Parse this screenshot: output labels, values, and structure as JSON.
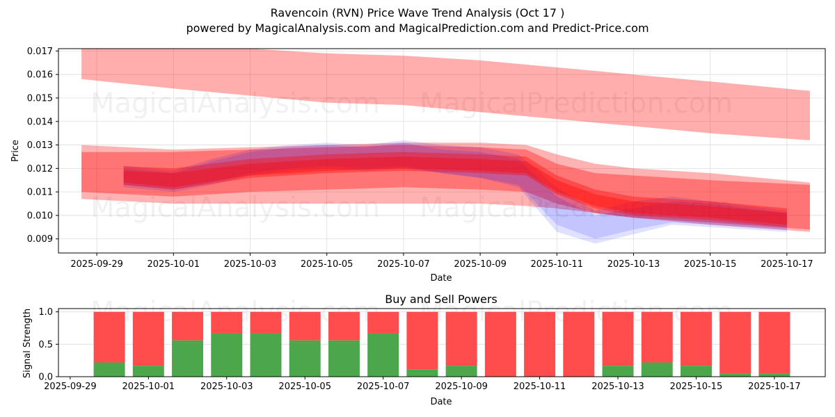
{
  "header": {
    "title": "Ravencoin (RVN) Price Wave Trend Analysis (Oct 17 )",
    "subtitle": "powered by MagicalAnalysis.com and MagicalPrediction.com and Predict-Price.com"
  },
  "watermarks": [
    "MagicalAnalysis.com",
    "MagicalPrediction.com"
  ],
  "colors": {
    "band_red": "#ff0000",
    "band_blue": "#0000ff",
    "buy": "#4ca64c",
    "sell": "#ff4c4c",
    "grid": "#dddddd"
  },
  "chart_data": [
    {
      "type": "area",
      "title": "",
      "xlabel": "Date",
      "ylabel": "Price",
      "ylim": [
        0.0084,
        0.0171
      ],
      "xlim": [
        "2025-09-28",
        "2025-10-18"
      ],
      "grid": true,
      "x_ticks": [
        "2025-09-29",
        "2025-10-01",
        "2025-10-03",
        "2025-10-05",
        "2025-10-07",
        "2025-10-09",
        "2025-10-11",
        "2025-10-13",
        "2025-10-15",
        "2025-10-17"
      ],
      "y_ticks": [
        "0.009",
        "0.010",
        "0.011",
        "0.012",
        "0.013",
        "0.014",
        "0.015",
        "0.016",
        "0.017"
      ],
      "series": [
        {
          "name": "upper-band",
          "color": "red",
          "alpha": 0.32,
          "x": [
            "2025-09-28.6",
            "2025-10-01",
            "2025-10-03",
            "2025-10-05",
            "2025-10-07",
            "2025-10-09",
            "2025-10-11",
            "2025-10-13",
            "2025-10-15",
            "2025-10-17.6"
          ],
          "upper": [
            0.0172,
            0.0172,
            0.0171,
            0.0169,
            0.0168,
            0.0166,
            0.0163,
            0.016,
            0.0157,
            0.0153
          ],
          "lower": [
            0.0158,
            0.0154,
            0.0151,
            0.0148,
            0.0147,
            0.0144,
            0.0141,
            0.0138,
            0.0135,
            0.0132
          ]
        },
        {
          "name": "outer-band",
          "color": "red",
          "alpha": 0.3,
          "x": [
            "2025-09-28.6",
            "2025-10-01",
            "2025-10-03",
            "2025-10-05",
            "2025-10-07",
            "2025-10-09",
            "2025-10-10.2",
            "2025-10-11",
            "2025-10-12",
            "2025-10-13",
            "2025-10-15",
            "2025-10-17.6"
          ],
          "upper": [
            0.013,
            0.0128,
            0.0129,
            0.013,
            0.0131,
            0.0131,
            0.013,
            0.0126,
            0.0122,
            0.012,
            0.0118,
            0.0114
          ],
          "lower": [
            0.0107,
            0.0105,
            0.0105,
            0.0105,
            0.0105,
            0.0105,
            0.0104,
            0.0103,
            0.0101,
            0.0099,
            0.0096,
            0.0093
          ]
        },
        {
          "name": "mid-band",
          "color": "red",
          "alpha": 0.35,
          "x": [
            "2025-09-28.6",
            "2025-10-01",
            "2025-10-03",
            "2025-10-05",
            "2025-10-07",
            "2025-10-09",
            "2025-10-10.2",
            "2025-10-11",
            "2025-10-12",
            "2025-10-13",
            "2025-10-15",
            "2025-10-17.6"
          ],
          "upper": [
            0.0127,
            0.0127,
            0.0128,
            0.0129,
            0.013,
            0.0129,
            0.0128,
            0.0122,
            0.0118,
            0.0117,
            0.0115,
            0.0113
          ],
          "lower": [
            0.011,
            0.0108,
            0.011,
            0.0111,
            0.0112,
            0.0111,
            0.011,
            0.0105,
            0.0101,
            0.0099,
            0.0097,
            0.0094
          ]
        },
        {
          "name": "blue-wave-1",
          "color": "blue",
          "alpha": 0.12,
          "x": [
            "2025-09-29.7",
            "2025-10-01",
            "2025-10-02",
            "2025-10-03",
            "2025-10-04",
            "2025-10-05",
            "2025-10-06",
            "2025-10-07",
            "2025-10-08",
            "2025-10-09",
            "2025-10-10",
            "2025-10-11",
            "2025-10-12",
            "2025-10-13",
            "2025-10-14",
            "2025-10-15",
            "2025-10-16",
            "2025-10-17"
          ],
          "upper": [
            0.0121,
            0.0119,
            0.0124,
            0.0128,
            0.013,
            0.0131,
            0.013,
            0.0132,
            0.013,
            0.0129,
            0.0126,
            0.0112,
            0.0102,
            0.0106,
            0.0108,
            0.0106,
            0.0104,
            0.0102
          ],
          "lower": [
            0.0112,
            0.011,
            0.0113,
            0.0117,
            0.0119,
            0.012,
            0.0119,
            0.012,
            0.0118,
            0.0116,
            0.0112,
            0.0093,
            0.0088,
            0.0092,
            0.0096,
            0.0095,
            0.0094,
            0.0093
          ]
        },
        {
          "name": "blue-wave-2",
          "color": "blue",
          "alpha": 0.12,
          "x": [
            "2025-09-29.7",
            "2025-10-01",
            "2025-10-02",
            "2025-10-03",
            "2025-10-04",
            "2025-10-05",
            "2025-10-06",
            "2025-10-07",
            "2025-10-08",
            "2025-10-09",
            "2025-10-10",
            "2025-10-11",
            "2025-10-12",
            "2025-10-13",
            "2025-10-14",
            "2025-10-15",
            "2025-10-16",
            "2025-10-17"
          ],
          "upper": [
            0.012,
            0.0118,
            0.0123,
            0.0127,
            0.0129,
            0.013,
            0.0129,
            0.0131,
            0.0128,
            0.0127,
            0.0124,
            0.0108,
            0.01,
            0.0103,
            0.0106,
            0.0105,
            0.0103,
            0.0101
          ],
          "lower": [
            0.0113,
            0.0111,
            0.0114,
            0.0118,
            0.012,
            0.0121,
            0.012,
            0.0121,
            0.0118,
            0.0116,
            0.0113,
            0.0096,
            0.009,
            0.0094,
            0.0097,
            0.0096,
            0.0095,
            0.0094
          ]
        },
        {
          "name": "red-wave-1",
          "color": "red",
          "alpha": 0.35,
          "x": [
            "2025-09-29.7",
            "2025-10-01",
            "2025-10-03",
            "2025-10-05",
            "2025-10-07",
            "2025-10-09",
            "2025-10-10.2",
            "2025-10-11",
            "2025-10-12",
            "2025-10-13",
            "2025-10-15",
            "2025-10-17"
          ],
          "upper": [
            0.0121,
            0.012,
            0.0124,
            0.0126,
            0.0127,
            0.0126,
            0.0125,
            0.0117,
            0.0111,
            0.0108,
            0.0106,
            0.0103
          ],
          "lower": [
            0.0113,
            0.0111,
            0.0116,
            0.0118,
            0.0119,
            0.0118,
            0.0117,
            0.0109,
            0.0103,
            0.01,
            0.0098,
            0.0095
          ]
        },
        {
          "name": "red-wave-2",
          "color": "red",
          "alpha": 0.35,
          "x": [
            "2025-09-29.7",
            "2025-10-01",
            "2025-10-03",
            "2025-10-05",
            "2025-10-07",
            "2025-10-09",
            "2025-10-10.2",
            "2025-10-11",
            "2025-10-12",
            "2025-10-13",
            "2025-10-15",
            "2025-10-17"
          ],
          "upper": [
            0.0119,
            0.0118,
            0.0122,
            0.0124,
            0.0125,
            0.0124,
            0.0123,
            0.0115,
            0.0109,
            0.0106,
            0.0104,
            0.0101
          ],
          "lower": [
            0.0114,
            0.0112,
            0.0117,
            0.0119,
            0.012,
            0.0119,
            0.0118,
            0.011,
            0.0104,
            0.0101,
            0.0099,
            0.0096
          ]
        }
      ]
    },
    {
      "type": "bar",
      "title": "Buy and Sell Powers",
      "xlabel": "Date",
      "ylabel": "Signal Strength",
      "ylim": [
        0,
        1.05
      ],
      "xlim": [
        "2025-09-28.7",
        "2025-10-18.3"
      ],
      "grid": true,
      "x_ticks": [
        "2025-09-29",
        "2025-10-01",
        "2025-10-03",
        "2025-10-05",
        "2025-10-07",
        "2025-10-09",
        "2025-10-11",
        "2025-10-13",
        "2025-10-15",
        "2025-10-17"
      ],
      "y_ticks": [
        "0.0",
        "0.5",
        "1.0"
      ],
      "categories": [
        "2025-09-30",
        "2025-10-01",
        "2025-10-02",
        "2025-10-03",
        "2025-10-04",
        "2025-10-05",
        "2025-10-06",
        "2025-10-07",
        "2025-10-08",
        "2025-10-09",
        "2025-10-10",
        "2025-10-11",
        "2025-10-12",
        "2025-10-13",
        "2025-10-14",
        "2025-10-15",
        "2025-10-16",
        "2025-10-17"
      ],
      "series": [
        {
          "name": "Buy",
          "color": "green",
          "values": [
            0.22,
            0.17,
            0.56,
            0.67,
            0.67,
            0.56,
            0.56,
            0.67,
            0.11,
            0.17,
            0.0,
            0.0,
            0.0,
            0.17,
            0.22,
            0.17,
            0.05,
            0.05
          ]
        },
        {
          "name": "Sell",
          "color": "red",
          "values": [
            0.78,
            0.83,
            0.44,
            0.33,
            0.33,
            0.44,
            0.44,
            0.33,
            0.89,
            0.83,
            1.0,
            1.0,
            1.0,
            0.83,
            0.78,
            0.83,
            0.95,
            0.95
          ]
        }
      ]
    }
  ]
}
